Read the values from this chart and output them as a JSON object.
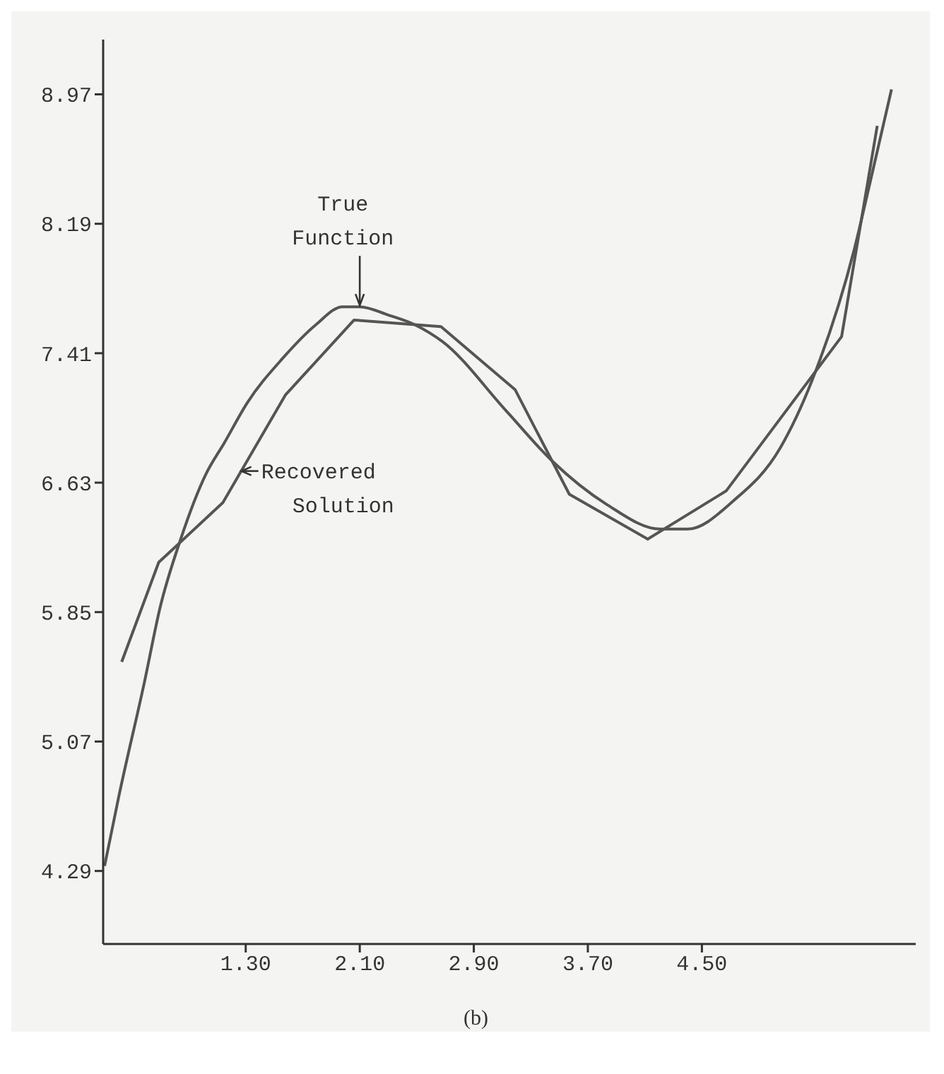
{
  "chart_data": {
    "type": "line",
    "xlim": [
      0.3,
      6.0
    ],
    "xticks": [
      {
        "value": 1.3,
        "label": "1.30"
      },
      {
        "value": 2.1,
        "label": "2.10"
      },
      {
        "value": 2.9,
        "label": "2.90"
      },
      {
        "value": 3.7,
        "label": "3.70"
      },
      {
        "value": 4.5,
        "label": "4.50"
      }
    ],
    "ylim": [
      3.85,
      9.3
    ],
    "yticks": [
      4.29,
      5.07,
      5.85,
      6.63,
      7.41,
      8.19,
      8.97
    ],
    "marker": "none",
    "line_style": "solid",
    "series": [
      {
        "color": "#555555",
        "x": [
          0.31,
          0.41,
          0.59,
          0.7,
          0.84,
          1.02,
          1.15,
          1.31,
          1.56,
          1.79,
          1.98,
          2.1,
          2.3,
          2.49,
          2.68,
          3.13,
          3.45,
          3.83,
          4.21,
          4.4,
          4.72,
          5.05,
          5.27,
          5.57,
          5.68,
          5.83
        ],
        "values": [
          4.32,
          4.74,
          5.43,
          5.88,
          6.28,
          6.68,
          6.87,
          7.11,
          7.38,
          7.58,
          7.69,
          7.69,
          7.64,
          7.58,
          7.48,
          7.06,
          6.76,
          6.5,
          6.35,
          6.35,
          6.52,
          6.84,
          7.24,
          8.04,
          8.44,
          9.0
        ]
      },
      {
        "color": "#555555",
        "x": [
          0.43,
          0.69,
          1.14,
          1.58,
          2.06,
          2.67,
          3.19,
          3.57,
          4.12,
          4.67,
          5.48,
          5.73
        ],
        "values": [
          5.55,
          6.15,
          6.51,
          7.16,
          7.61,
          7.57,
          7.19,
          6.56,
          6.29,
          6.58,
          7.51,
          8.78
        ]
      }
    ],
    "annotations": [
      {
        "text": "True Function",
        "x": 2.1,
        "y": 7.69
      },
      {
        "text": "Recovered Solution",
        "x": 1.27,
        "y": 6.7
      },
      "(b)"
    ]
  }
}
